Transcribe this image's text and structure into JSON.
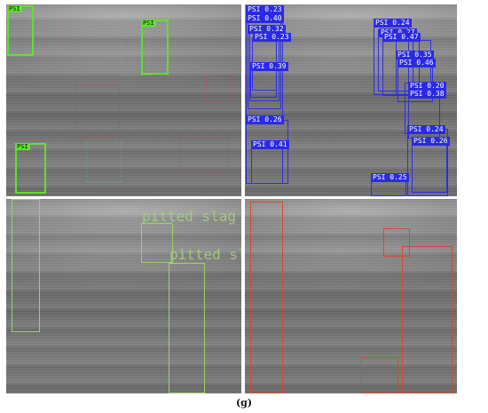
{
  "caption": "(g)",
  "panels": {
    "top_left": {
      "boxes": [
        {
          "tag": "PSI"
        },
        {
          "tag": "PSI"
        },
        {
          "tag": "PSI"
        }
      ]
    },
    "top_right": {
      "labels": [
        "PSI 0.23",
        "PSI 0.40",
        "PSI 0.32",
        "PSI 0.23",
        "PSI 0.39",
        "PSI 0.26",
        "PSI 0.41",
        "PSI 0.24",
        "PSI 0.27",
        "PSI 0.47",
        "PSI 0.35",
        "PSI 0.46",
        "PSI 0.20",
        "PSI 0.38",
        "PSI 0.24",
        "PSI 0.26",
        "PSI 0.25"
      ]
    },
    "bottom_left": {
      "labels": [
        "pitted slag i",
        "pitted sla"
      ]
    }
  },
  "colors": {
    "green_box": "#5fe22a",
    "blue_box": "#2d2de8",
    "red_box": "#d24a32",
    "text_green": "#a6cf83"
  }
}
